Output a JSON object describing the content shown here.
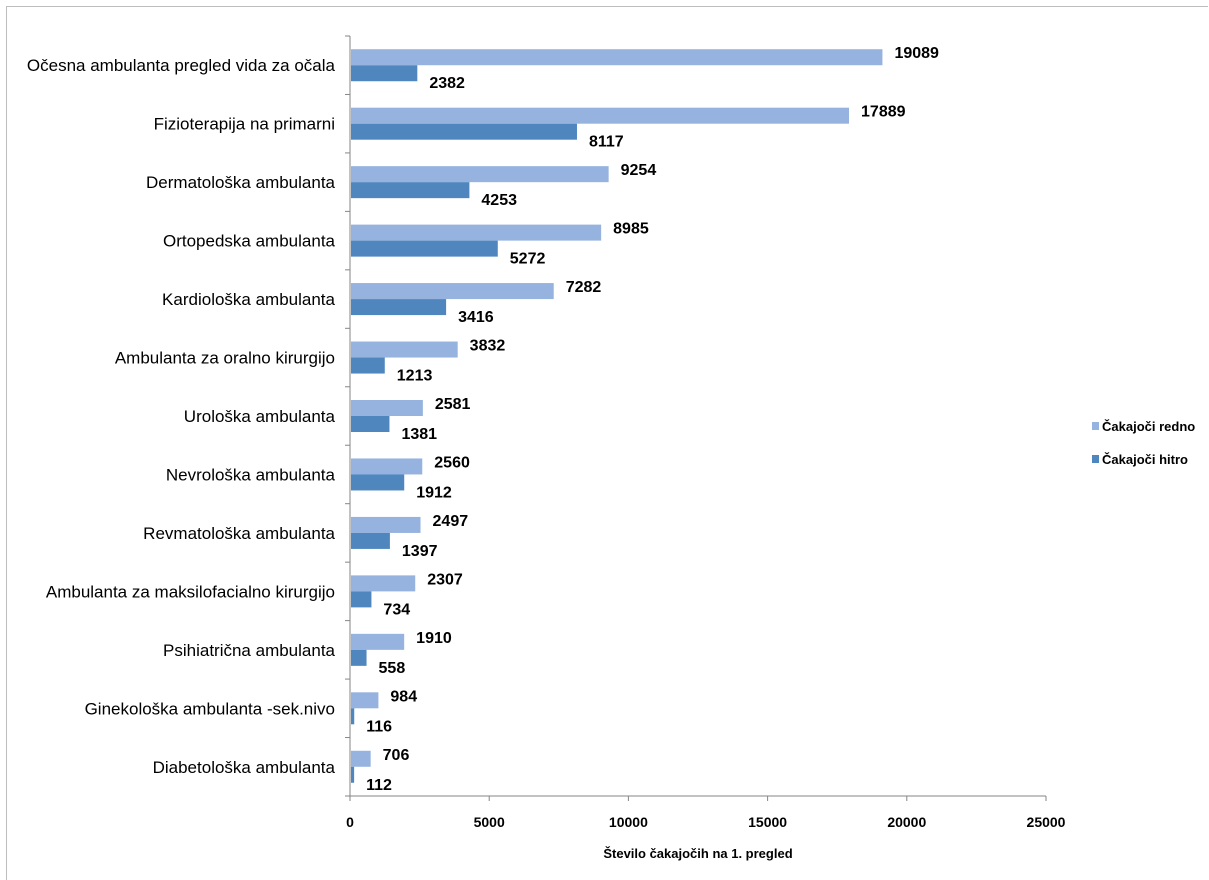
{
  "chart_data": {
    "type": "bar",
    "orientation": "horizontal",
    "title": "",
    "xlabel": "Število čakajočih na 1. pregled",
    "ylabel": "",
    "xlim": [
      0,
      25000
    ],
    "xticks": [
      0,
      5000,
      10000,
      15000,
      20000,
      25000
    ],
    "grid": false,
    "legend_position": "right",
    "categories": [
      "Očesna ambulanta  pregled vida za očala",
      "Fizioterapija na primarni",
      "Dermatološka ambulanta",
      "Ortopedska ambulanta",
      "Kardiološka ambulanta",
      "Ambulanta za oralno kirurgijo",
      "Urološka ambulanta",
      "Nevrološka ambulanta",
      "Revmatološka ambulanta",
      "Ambulanta za maksilofacialno kirurgijo",
      "Psihiatrična ambulanta",
      "Ginekološka ambulanta -sek.nivo",
      "Diabetološka ambulanta"
    ],
    "series": [
      {
        "name": "Čakajoči redno",
        "color": "#95b3de",
        "values": [
          19089,
          17889,
          9254,
          8985,
          7282,
          3832,
          2581,
          2560,
          2497,
          2307,
          1910,
          984,
          706
        ]
      },
      {
        "name": "Čakajoči hitro",
        "color": "#4f86be",
        "values": [
          2382,
          8117,
          4253,
          5272,
          3416,
          1213,
          1381,
          1912,
          1397,
          734,
          558,
          116,
          112
        ]
      }
    ]
  }
}
